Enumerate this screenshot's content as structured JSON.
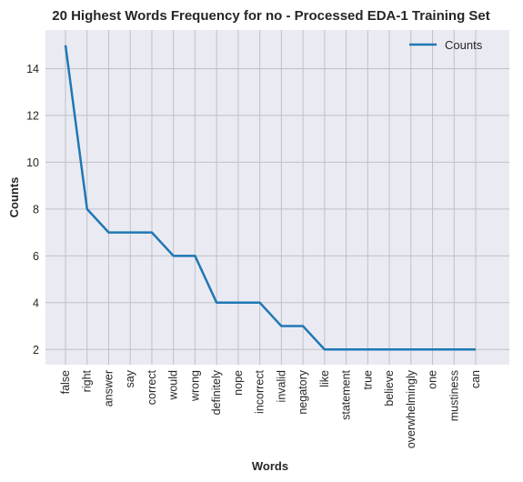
{
  "chart_data": {
    "type": "line",
    "title": "20 Highest Words Frequency for no - Processed EDA-1 Training Set",
    "xlabel": "Words",
    "ylabel": "Counts",
    "categories": [
      "false",
      "right",
      "answer",
      "say",
      "correct",
      "would",
      "wrong",
      "definitely",
      "nope",
      "incorrect",
      "invalid",
      "negatory",
      "like",
      "statement",
      "true",
      "believe",
      "overwhelmingly",
      "one",
      "mustiness",
      "can"
    ],
    "series": [
      {
        "name": "Counts",
        "values": [
          15,
          8,
          7,
          7,
          7,
          6,
          6,
          4,
          4,
          4,
          3,
          3,
          2,
          2,
          2,
          2,
          2,
          2,
          2,
          2
        ]
      }
    ],
    "ylim": [
      1.35,
      15.65
    ],
    "yticks": [
      2,
      4,
      6,
      8,
      10,
      12,
      14
    ],
    "grid": true,
    "legend": "top-right",
    "colors": {
      "line": "#1f77b4",
      "background": "#eaeaf2",
      "grid": "#c0c0c8"
    }
  }
}
